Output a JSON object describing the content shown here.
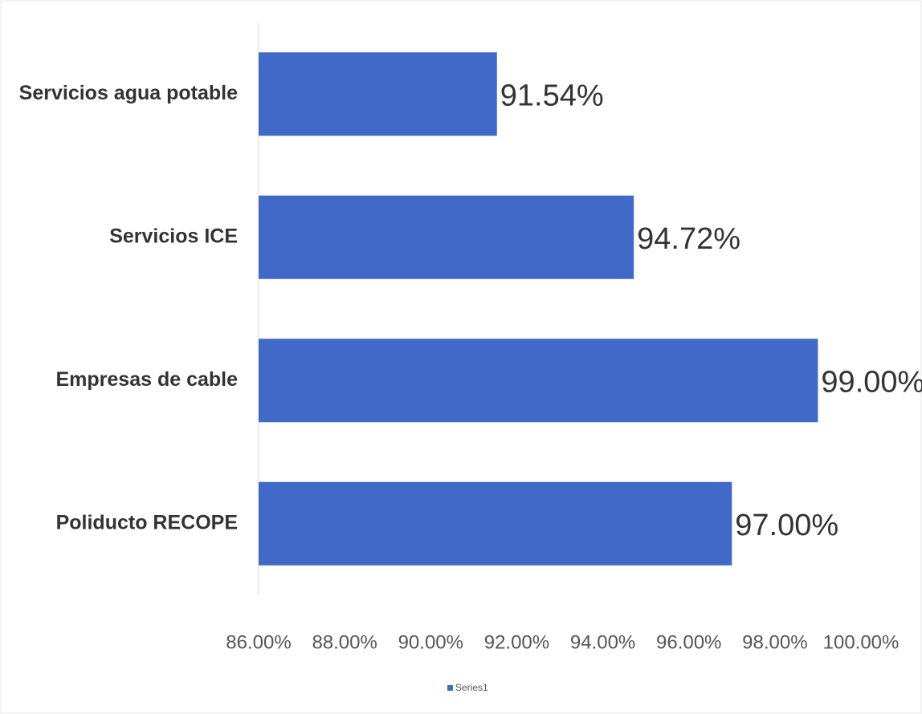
{
  "chart_data": {
    "type": "bar",
    "orientation": "horizontal",
    "categories": [
      "Servicios agua potable",
      "Servicios ICE",
      "Empresas de cable",
      "Poliducto RECOPE"
    ],
    "series": [
      {
        "name": "Series1",
        "color": "#4169c8",
        "values": [
          91.54,
          94.72,
          99.0,
          97.0
        ],
        "value_labels": [
          "91.54%",
          "94.72%",
          "99.00%",
          "97.00%"
        ]
      }
    ],
    "xlim": [
      86,
      100
    ],
    "xticks": [
      {
        "value": 86,
        "label": "86.00%"
      },
      {
        "value": 88,
        "label": "88.00%"
      },
      {
        "value": 90,
        "label": "90.00%"
      },
      {
        "value": 92,
        "label": "92.00%"
      },
      {
        "value": 94,
        "label": "94.00%"
      },
      {
        "value": 96,
        "label": "96.00%"
      },
      {
        "value": 98,
        "label": "98.00%"
      },
      {
        "value": 100,
        "label": "100.00%"
      }
    ],
    "legend": "bottom",
    "grid": false
  }
}
